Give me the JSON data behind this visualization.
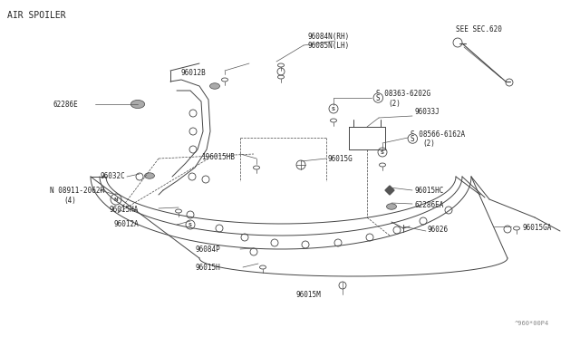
{
  "bg_color": "#ffffff",
  "line_color": "#444444",
  "label_color": "#222222",
  "title": "AIR SPOILER",
  "watermark": "^960*00P4",
  "see_sec": "SEE SEC.620"
}
